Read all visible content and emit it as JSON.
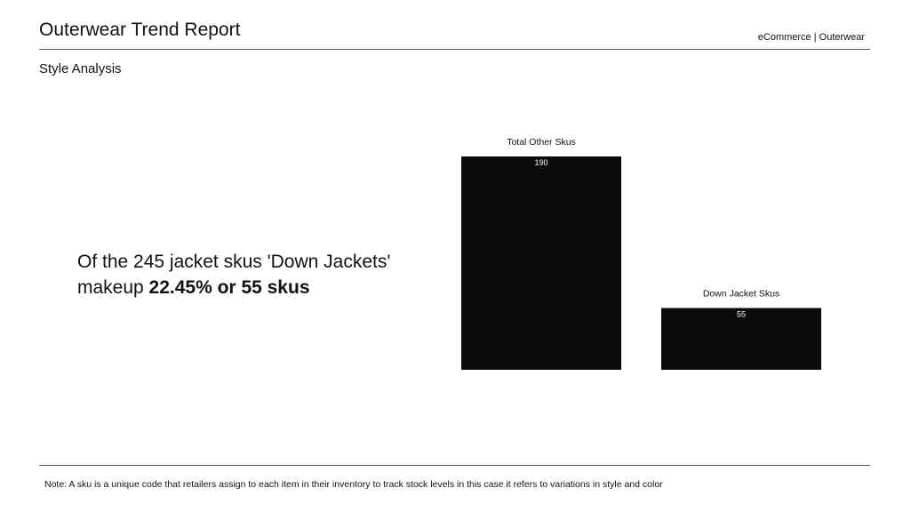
{
  "header": {
    "title": "Outerwear Trend Report",
    "tag": "eCommerce | Outerwear"
  },
  "section": {
    "title": "Style Analysis"
  },
  "summary": {
    "line1": "Of the 245 jacket skus 'Down Jackets'",
    "line2_prefix": "makeup ",
    "line2_bold": "22.45% or 55 skus"
  },
  "chart_data": {
    "type": "bar",
    "categories": [
      "Total Other Skus",
      "Down Jacket Skus"
    ],
    "values": [
      190,
      55
    ],
    "data_labels": [
      "190",
      "55"
    ],
    "bar_color": "#0a0b0c",
    "label_color": "#ffffff",
    "title": "",
    "xlabel": "",
    "ylabel": "",
    "ylim": [
      0,
      190
    ],
    "grid": false,
    "legend": "none"
  },
  "footer": {
    "note": "Note: A sku is a unique code that retailers assign to each item in their inventory to track stock levels in this case it refers to variations in style and color"
  }
}
